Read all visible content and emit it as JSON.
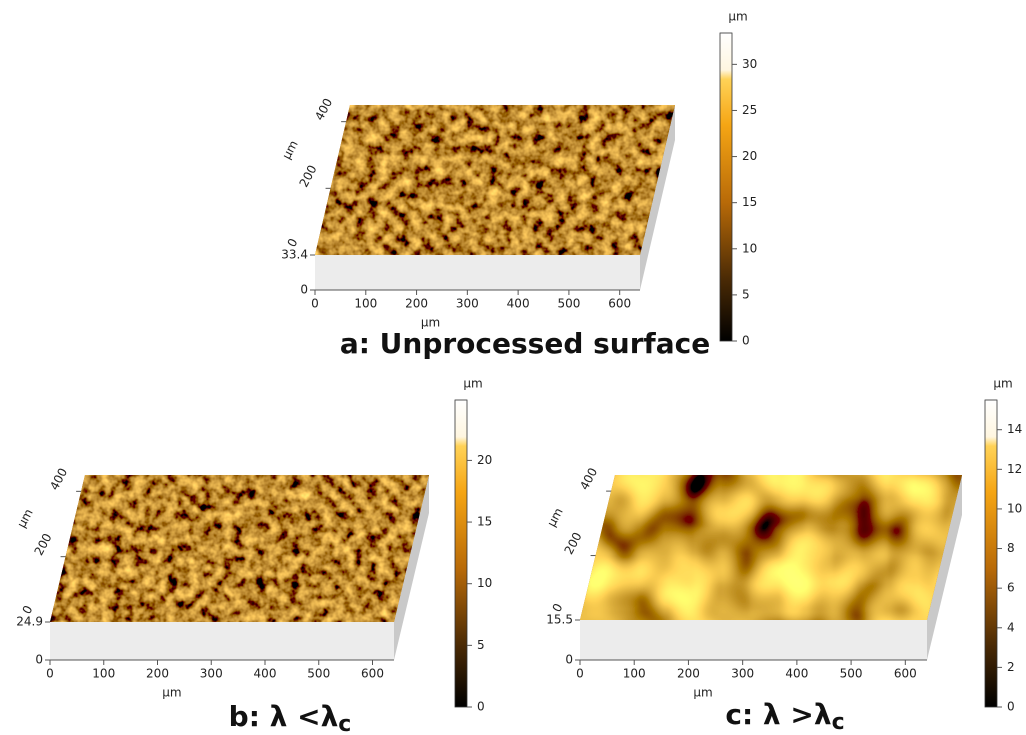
{
  "chart_data": [
    {
      "type": "surface",
      "title": "a: Unprocessed surface",
      "x_label": "μm",
      "y_label": "μm",
      "xlim": [
        0,
        640
      ],
      "xticks": [
        0,
        100,
        200,
        300,
        400,
        500,
        600
      ],
      "ylim": [
        0,
        450
      ],
      "yticks": [
        0,
        200,
        400
      ],
      "zticks": [
        0,
        33.4
      ],
      "colorbar": {
        "label": "μm",
        "lim": [
          0,
          33.4
        ],
        "ticks": [
          0,
          5,
          10,
          15,
          20,
          25,
          30
        ]
      }
    },
    {
      "type": "surface",
      "title": "b: λ <λ",
      "title_subscript": "c",
      "x_label": "μm",
      "y_label": "μm",
      "xlim": [
        0,
        640
      ],
      "xticks": [
        0,
        100,
        200,
        300,
        400,
        500,
        600
      ],
      "ylim": [
        0,
        450
      ],
      "yticks": [
        0,
        200,
        400
      ],
      "zticks": [
        0,
        24.9
      ],
      "colorbar": {
        "label": "μm",
        "lim": [
          0,
          24.9
        ],
        "ticks": [
          0,
          5,
          10,
          15,
          20
        ]
      }
    },
    {
      "type": "surface",
      "title": "c: λ >λ",
      "title_subscript": "c",
      "x_label": "μm",
      "y_label": "μm",
      "xlim": [
        0,
        640
      ],
      "xticks": [
        0,
        100,
        200,
        300,
        400,
        500,
        600
      ],
      "ylim": [
        0,
        450
      ],
      "yticks": [
        0,
        200,
        400
      ],
      "zticks": [
        0,
        15.5
      ],
      "colorbar": {
        "label": "μm",
        "lim": [
          0,
          15.5
        ],
        "ticks": [
          0,
          2,
          4,
          6,
          8,
          10,
          12,
          14
        ]
      }
    }
  ]
}
